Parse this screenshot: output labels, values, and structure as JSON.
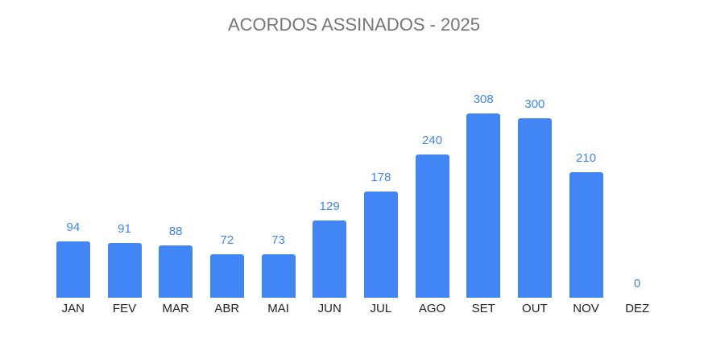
{
  "chart_data": {
    "type": "bar",
    "title": "ACORDOS ASSINADOS - 2025",
    "categories": [
      "JAN",
      "FEV",
      "MAR",
      "ABR",
      "MAI",
      "JUN",
      "JUL",
      "AGO",
      "SET",
      "OUT",
      "NOV",
      "DEZ"
    ],
    "values": [
      94,
      91,
      88,
      72,
      73,
      129,
      178,
      240,
      308,
      300,
      210,
      0
    ],
    "xlabel": "",
    "ylabel": "",
    "ylim": [
      0,
      320
    ],
    "grid": false,
    "legend": "none",
    "value_labels_shown": true,
    "colors": {
      "bar": "#4285F4",
      "value_label": "#4285F4",
      "category_label": "#1f1f1f",
      "title": "#757575",
      "background": "#ffffff"
    }
  }
}
